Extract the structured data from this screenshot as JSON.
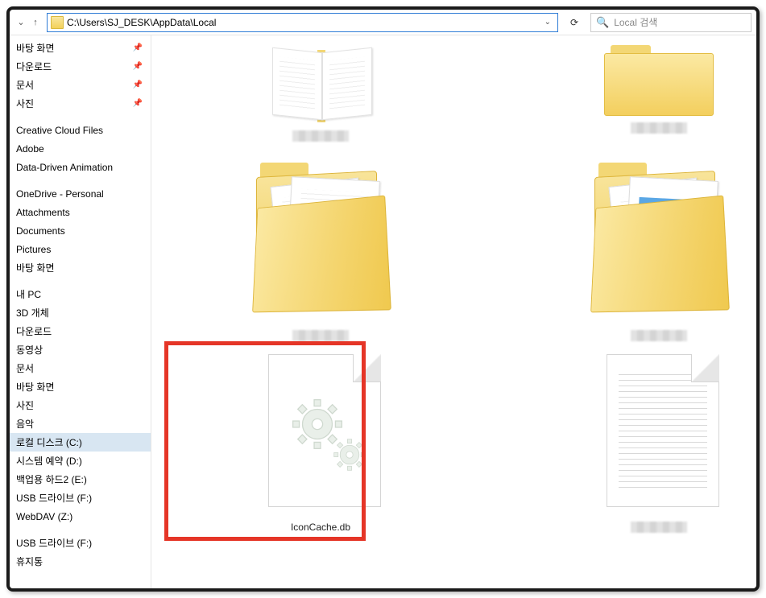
{
  "toolbar": {
    "address_path": "C:\\Users\\SJ_DESK\\AppData\\Local",
    "search_placeholder": "Local 검색"
  },
  "sidebar": {
    "quick": [
      {
        "label": "바탕 화면",
        "pinned": true
      },
      {
        "label": "다운로드",
        "pinned": true
      },
      {
        "label": "문서",
        "pinned": true
      },
      {
        "label": "사진",
        "pinned": true
      }
    ],
    "cloud": [
      {
        "label": "Creative Cloud Files"
      },
      {
        "label": "Adobe"
      },
      {
        "label": "Data-Driven Animation"
      }
    ],
    "onedrive_header": "OneDrive - Personal",
    "onedrive": [
      {
        "label": "Attachments"
      },
      {
        "label": "Documents"
      },
      {
        "label": "Pictures"
      },
      {
        "label": "바탕 화면"
      }
    ],
    "thispc_header": "내 PC",
    "thispc": [
      {
        "label": "3D 개체"
      },
      {
        "label": "다운로드"
      },
      {
        "label": "동영상"
      },
      {
        "label": "문서"
      },
      {
        "label": "바탕 화면"
      },
      {
        "label": "사진"
      },
      {
        "label": "음악"
      },
      {
        "label": "로컬 디스크 (C:)",
        "selected": true
      },
      {
        "label": "시스템 예약 (D:)"
      },
      {
        "label": "백업용 하드2 (E:)"
      },
      {
        "label": "USB 드라이브 (F:)"
      },
      {
        "label": "WebDAV (Z:)"
      }
    ],
    "extra": [
      {
        "label": "USB 드라이브 (F:)"
      },
      {
        "label": "휴지통"
      }
    ]
  },
  "content": {
    "items": [
      {
        "kind": "folder-book",
        "label": "",
        "blurred": true
      },
      {
        "kind": "folder-closed",
        "label": "",
        "blurred": true
      },
      {
        "kind": "folder-open-docs",
        "label": "",
        "blurred": true
      },
      {
        "kind": "folder-open-pics",
        "label": "",
        "blurred": true
      },
      {
        "kind": "file-settings",
        "label": "IconCache.db",
        "highlighted": true
      },
      {
        "kind": "file-text",
        "label": "",
        "blurred": true
      }
    ]
  },
  "colors": {
    "highlight": "#e53527",
    "address_border": "#2e7cd6",
    "selection": "#d8e6f2"
  }
}
